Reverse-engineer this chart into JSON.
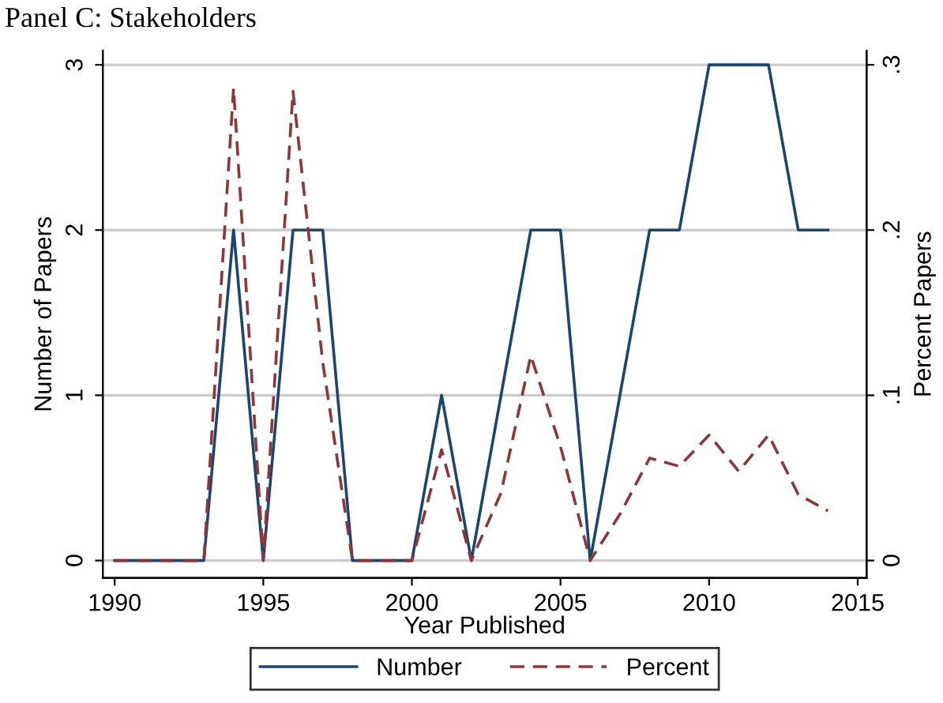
{
  "chart_data": {
    "type": "line",
    "title": "Panel C: Stakeholders",
    "xlabel": "Year Published",
    "ylabel": "Number of Papers",
    "y2label": "Percent Papers",
    "x": [
      1990,
      1991,
      1992,
      1993,
      1994,
      1995,
      1996,
      1997,
      1998,
      1999,
      2000,
      2001,
      2002,
      2003,
      2004,
      2005,
      2006,
      2007,
      2008,
      2009,
      2010,
      2011,
      2012,
      2013,
      2014
    ],
    "series": [
      {
        "name": "Number",
        "color": "#1a476f",
        "line_style": "solid",
        "values": [
          0,
          0,
          0,
          0,
          2,
          0,
          2,
          2,
          0,
          0,
          0,
          1,
          0,
          1,
          2,
          2,
          0,
          1,
          2,
          2,
          3,
          3,
          3,
          2,
          2
        ]
      },
      {
        "name": "Percent",
        "color": "#90353b",
        "line_style": "dashed",
        "axis": "y2",
        "values": [
          0,
          0,
          0,
          0,
          0.286,
          0,
          0.284,
          0.12,
          0,
          0,
          0,
          0.067,
          0,
          0.041,
          0.124,
          0.069,
          0,
          0.028,
          0.062,
          0.057,
          0.076,
          0.054,
          0.076,
          0.04,
          0.03
        ]
      }
    ],
    "xlim": [
      1989.6,
      2015.3
    ],
    "xticks": [
      1990,
      1995,
      2000,
      2005,
      2010,
      2015
    ],
    "ylim": [
      -0.105,
      3.086
    ],
    "yticks": [
      0,
      1,
      2,
      3
    ],
    "y2lim": [
      -0.0105,
      0.3086
    ],
    "y2ticks": [
      0,
      {
        "value": 0.1,
        "label": ".1"
      },
      {
        "value": 0.2,
        "label": ".2"
      },
      {
        "value": 0.3,
        "label": ".3"
      }
    ],
    "grid": "y",
    "legend": "bottom",
    "marker": "none"
  }
}
